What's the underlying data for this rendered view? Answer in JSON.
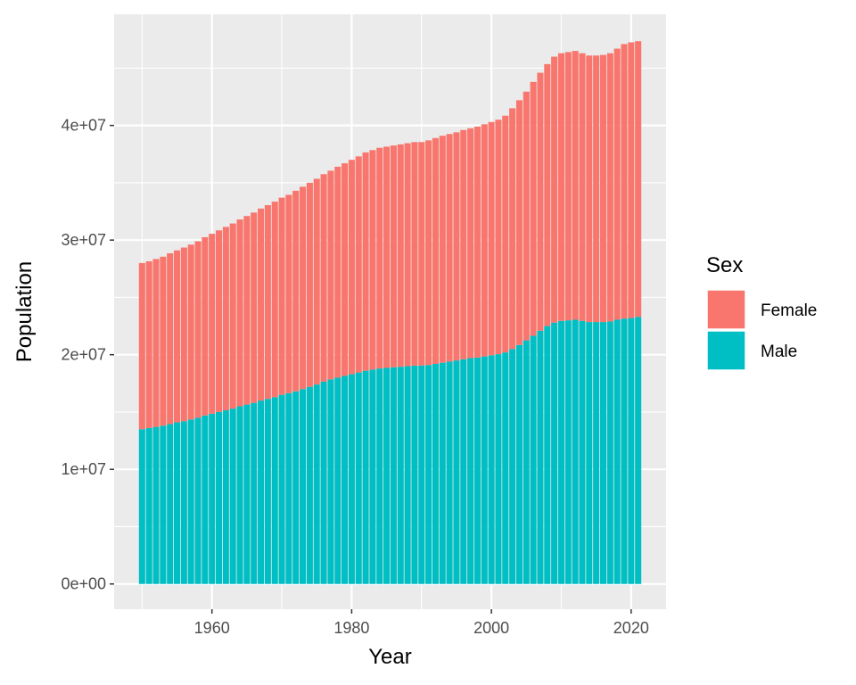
{
  "chart_data": {
    "type": "bar",
    "stacked": true,
    "xlabel": "Year",
    "ylabel": "Population",
    "xlim": [
      1946,
      2025
    ],
    "ylim": [
      -2200000,
      49700000
    ],
    "x_ticks": [
      1960,
      1980,
      2000,
      2020
    ],
    "x_tick_labels": [
      "1960",
      "1980",
      "2000",
      "2020"
    ],
    "y_ticks": [
      0,
      10000000,
      20000000,
      30000000,
      40000000
    ],
    "y_tick_labels": [
      "0e+00",
      "1e+07",
      "2e+07",
      "3e+07",
      "4e+07"
    ],
    "grid": true,
    "panel_background": "#ebebeb",
    "legend": {
      "title": "Sex",
      "position": "right",
      "entries": [
        {
          "label": "Female",
          "color": "#f8766d"
        },
        {
          "label": "Male",
          "color": "#00bfc4"
        }
      ]
    },
    "x": [
      1950,
      1951,
      1952,
      1953,
      1954,
      1955,
      1956,
      1957,
      1958,
      1959,
      1960,
      1961,
      1962,
      1963,
      1964,
      1965,
      1966,
      1967,
      1968,
      1969,
      1970,
      1971,
      1972,
      1973,
      1974,
      1975,
      1976,
      1977,
      1978,
      1979,
      1980,
      1981,
      1982,
      1983,
      1984,
      1985,
      1986,
      1987,
      1988,
      1989,
      1990,
      1991,
      1992,
      1993,
      1994,
      1995,
      1996,
      1997,
      1998,
      1999,
      2000,
      2001,
      2002,
      2003,
      2004,
      2005,
      2006,
      2007,
      2008,
      2009,
      2010,
      2011,
      2012,
      2013,
      2014,
      2015,
      2016,
      2017,
      2018,
      2019,
      2020,
      2021
    ],
    "series": [
      {
        "name": "Male",
        "color": "#00bfc4",
        "values": [
          13500000,
          13600000,
          13700000,
          13800000,
          13950000,
          14100000,
          14200000,
          14350000,
          14500000,
          14700000,
          14850000,
          15000000,
          15150000,
          15300000,
          15500000,
          15650000,
          15800000,
          16000000,
          16150000,
          16300000,
          16500000,
          16650000,
          16800000,
          17000000,
          17200000,
          17400000,
          17650000,
          17850000,
          18000000,
          18150000,
          18300000,
          18450000,
          18600000,
          18700000,
          18800000,
          18850000,
          18900000,
          18950000,
          19000000,
          19050000,
          19050000,
          19100000,
          19200000,
          19300000,
          19400000,
          19500000,
          19600000,
          19700000,
          19750000,
          19850000,
          19950000,
          20050000,
          20200000,
          20500000,
          20850000,
          21250000,
          21650000,
          22100000,
          22500000,
          22800000,
          22950000,
          23000000,
          23050000,
          22950000,
          22850000,
          22850000,
          22850000,
          22900000,
          23050000,
          23150000,
          23200000,
          23300000
        ]
      },
      {
        "name": "Female",
        "color": "#f8766d",
        "values": [
          14500000,
          14550000,
          14650000,
          14750000,
          14900000,
          15000000,
          15150000,
          15250000,
          15400000,
          15550000,
          15700000,
          15850000,
          16000000,
          16150000,
          16300000,
          16450000,
          16600000,
          16750000,
          16900000,
          17050000,
          17200000,
          17300000,
          17500000,
          17650000,
          17800000,
          17950000,
          18100000,
          18200000,
          18400000,
          18550000,
          18700000,
          18850000,
          19050000,
          19150000,
          19250000,
          19300000,
          19350000,
          19400000,
          19450000,
          19500000,
          19500000,
          19600000,
          19700000,
          19800000,
          19850000,
          19900000,
          20000000,
          20050000,
          20150000,
          20250000,
          20350000,
          20450000,
          20650000,
          21000000,
          21350000,
          21700000,
          22150000,
          22500000,
          22850000,
          23200000,
          23350000,
          23400000,
          23450000,
          23350000,
          23250000,
          23250000,
          23300000,
          23400000,
          23650000,
          23950000,
          24050000,
          24050000
        ]
      }
    ]
  }
}
